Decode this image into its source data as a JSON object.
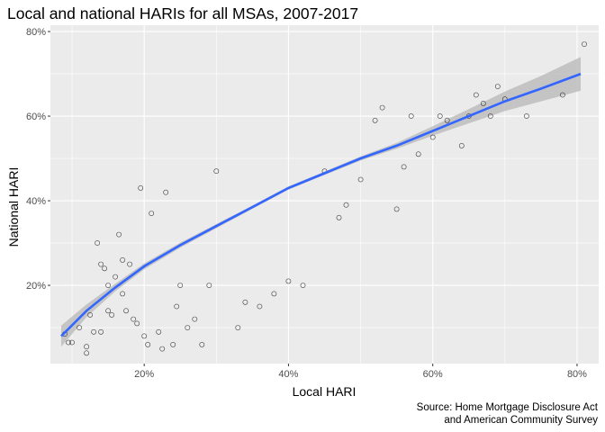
{
  "chart_data": {
    "type": "scatter",
    "title": "Local and national HARIs for all MSAs, 2007-2017",
    "xlabel": "Local HARI",
    "ylabel": "National HARI",
    "caption_line1": "Source: Home Mortgage Disclosure Act",
    "caption_line2": "and American Community Survey",
    "xlim": [
      0.07,
      0.83
    ],
    "ylim": [
      0.015,
      0.815
    ],
    "x_ticks": [
      {
        "value": 0.2,
        "label": "20%"
      },
      {
        "value": 0.4,
        "label": "40%"
      },
      {
        "value": 0.6,
        "label": "60%"
      },
      {
        "value": 0.8,
        "label": "80%"
      }
    ],
    "y_ticks": [
      {
        "value": 0.2,
        "label": "20%"
      },
      {
        "value": 0.4,
        "label": "40%"
      },
      {
        "value": 0.6,
        "label": "60%"
      },
      {
        "value": 0.8,
        "label": "80%"
      }
    ],
    "grid": true,
    "legend": "none",
    "colors": {
      "panel": "#ebebeb",
      "grid": "#ffffff",
      "point_stroke": "#000000",
      "trend_line": "#3366ff",
      "confidence_band": "#bdbdbd"
    },
    "trend": {
      "type": "smooth",
      "x": [
        0.085,
        0.12,
        0.16,
        0.2,
        0.25,
        0.3,
        0.35,
        0.4,
        0.45,
        0.5,
        0.55,
        0.6,
        0.65,
        0.7,
        0.75,
        0.805
      ],
      "y": [
        0.08,
        0.14,
        0.195,
        0.245,
        0.295,
        0.34,
        0.385,
        0.43,
        0.465,
        0.5,
        0.53,
        0.565,
        0.6,
        0.635,
        0.665,
        0.7
      ],
      "lower": [
        0.055,
        0.125,
        0.186,
        0.238,
        0.289,
        0.335,
        0.381,
        0.426,
        0.461,
        0.495,
        0.523,
        0.554,
        0.583,
        0.612,
        0.635,
        0.66
      ],
      "upper": [
        0.105,
        0.155,
        0.204,
        0.252,
        0.301,
        0.345,
        0.389,
        0.434,
        0.469,
        0.505,
        0.537,
        0.576,
        0.617,
        0.658,
        0.695,
        0.74
      ]
    },
    "points": [
      [
        0.09,
        0.085
      ],
      [
        0.095,
        0.065
      ],
      [
        0.1,
        0.065
      ],
      [
        0.11,
        0.1
      ],
      [
        0.12,
        0.055
      ],
      [
        0.12,
        0.04
      ],
      [
        0.125,
        0.13
      ],
      [
        0.13,
        0.09
      ],
      [
        0.135,
        0.3
      ],
      [
        0.14,
        0.25
      ],
      [
        0.14,
        0.09
      ],
      [
        0.145,
        0.24
      ],
      [
        0.15,
        0.2
      ],
      [
        0.15,
        0.14
      ],
      [
        0.155,
        0.13
      ],
      [
        0.16,
        0.22
      ],
      [
        0.165,
        0.32
      ],
      [
        0.17,
        0.18
      ],
      [
        0.17,
        0.26
      ],
      [
        0.175,
        0.14
      ],
      [
        0.18,
        0.25
      ],
      [
        0.185,
        0.12
      ],
      [
        0.19,
        0.11
      ],
      [
        0.195,
        0.43
      ],
      [
        0.2,
        0.08
      ],
      [
        0.205,
        0.06
      ],
      [
        0.21,
        0.37
      ],
      [
        0.22,
        0.09
      ],
      [
        0.225,
        0.05
      ],
      [
        0.23,
        0.42
      ],
      [
        0.24,
        0.06
      ],
      [
        0.245,
        0.15
      ],
      [
        0.25,
        0.2
      ],
      [
        0.26,
        0.1
      ],
      [
        0.27,
        0.12
      ],
      [
        0.28,
        0.06
      ],
      [
        0.29,
        0.2
      ],
      [
        0.3,
        0.47
      ],
      [
        0.33,
        0.1
      ],
      [
        0.34,
        0.16
      ],
      [
        0.36,
        0.15
      ],
      [
        0.38,
        0.18
      ],
      [
        0.4,
        0.21
      ],
      [
        0.42,
        0.2
      ],
      [
        0.45,
        0.47
      ],
      [
        0.47,
        0.36
      ],
      [
        0.48,
        0.39
      ],
      [
        0.5,
        0.45
      ],
      [
        0.52,
        0.59
      ],
      [
        0.53,
        0.62
      ],
      [
        0.55,
        0.38
      ],
      [
        0.56,
        0.48
      ],
      [
        0.57,
        0.6
      ],
      [
        0.58,
        0.51
      ],
      [
        0.6,
        0.55
      ],
      [
        0.61,
        0.6
      ],
      [
        0.62,
        0.59
      ],
      [
        0.64,
        0.53
      ],
      [
        0.65,
        0.6
      ],
      [
        0.66,
        0.65
      ],
      [
        0.67,
        0.63
      ],
      [
        0.68,
        0.6
      ],
      [
        0.69,
        0.67
      ],
      [
        0.7,
        0.64
      ],
      [
        0.73,
        0.6
      ],
      [
        0.78,
        0.65
      ],
      [
        0.81,
        0.77
      ]
    ]
  }
}
